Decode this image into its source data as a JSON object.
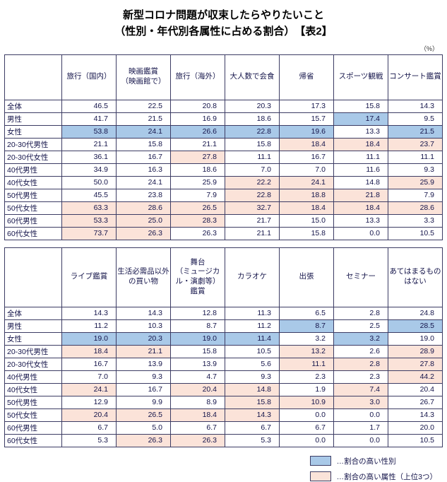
{
  "title": {
    "line1": "新型コロナ問題が収束したらやりたいこと",
    "line2": "（性別・年代別各属性に占める割合）　【表2】"
  },
  "unit_label": "（%）",
  "colors": {
    "blue": "#a9c9e8",
    "pink": "#fbe3d9"
  },
  "legend": [
    {
      "color": "blue",
      "label": "…割合の高い性別"
    },
    {
      "color": "pink",
      "label": "…割合の高い属性（上位3つ）"
    }
  ],
  "chart_data": [
    {
      "type": "table",
      "title": "新型コロナ問題が収束したらやりたいこと（表2・上段）",
      "columns": [
        "旅行（国内）",
        "映画鑑賞\n（映画館で）",
        "旅行（海外）",
        "大人数で会食",
        "帰省",
        "スポーツ観戦",
        "コンサート鑑賞"
      ],
      "rows": [
        {
          "label": "全体",
          "cells": [
            {
              "v": "46.5"
            },
            {
              "v": "22.5"
            },
            {
              "v": "20.8"
            },
            {
              "v": "20.3"
            },
            {
              "v": "17.3"
            },
            {
              "v": "15.8"
            },
            {
              "v": "14.3"
            }
          ]
        },
        {
          "label": "男性",
          "cells": [
            {
              "v": "41.7"
            },
            {
              "v": "21.5"
            },
            {
              "v": "16.9"
            },
            {
              "v": "18.6"
            },
            {
              "v": "15.7"
            },
            {
              "v": "17.4",
              "h": "blue"
            },
            {
              "v": "9.5"
            }
          ]
        },
        {
          "label": "女性",
          "cells": [
            {
              "v": "53.8",
              "h": "blue"
            },
            {
              "v": "24.1",
              "h": "blue"
            },
            {
              "v": "26.6",
              "h": "blue"
            },
            {
              "v": "22.8",
              "h": "blue"
            },
            {
              "v": "19.6",
              "h": "blue"
            },
            {
              "v": "13.3"
            },
            {
              "v": "21.5",
              "h": "blue"
            }
          ]
        },
        {
          "label": "20-30代男性",
          "cells": [
            {
              "v": "21.1"
            },
            {
              "v": "15.8"
            },
            {
              "v": "21.1"
            },
            {
              "v": "15.8"
            },
            {
              "v": "18.4",
              "h": "pink"
            },
            {
              "v": "18.4",
              "h": "pink"
            },
            {
              "v": "23.7",
              "h": "pink"
            }
          ]
        },
        {
          "label": "20-30代女性",
          "cells": [
            {
              "v": "36.1"
            },
            {
              "v": "16.7"
            },
            {
              "v": "27.8",
              "h": "pink"
            },
            {
              "v": "11.1"
            },
            {
              "v": "16.7"
            },
            {
              "v": "11.1"
            },
            {
              "v": "11.1"
            }
          ]
        },
        {
          "label": "40代男性",
          "cells": [
            {
              "v": "34.9"
            },
            {
              "v": "16.3"
            },
            {
              "v": "18.6"
            },
            {
              "v": "7.0"
            },
            {
              "v": "7.0"
            },
            {
              "v": "11.6"
            },
            {
              "v": "9.3"
            }
          ]
        },
        {
          "label": "40代女性",
          "cells": [
            {
              "v": "50.0"
            },
            {
              "v": "24.1"
            },
            {
              "v": "25.9"
            },
            {
              "v": "22.2",
              "h": "pink"
            },
            {
              "v": "24.1",
              "h": "pink"
            },
            {
              "v": "14.8"
            },
            {
              "v": "25.9",
              "h": "pink"
            }
          ]
        },
        {
          "label": "50代男性",
          "cells": [
            {
              "v": "45.5"
            },
            {
              "v": "23.8"
            },
            {
              "v": "7.9"
            },
            {
              "v": "22.8",
              "h": "pink"
            },
            {
              "v": "18.8",
              "h": "pink"
            },
            {
              "v": "21.8",
              "h": "pink"
            },
            {
              "v": "7.9"
            }
          ]
        },
        {
          "label": "50代女性",
          "cells": [
            {
              "v": "63.3",
              "h": "pink"
            },
            {
              "v": "28.6",
              "h": "pink"
            },
            {
              "v": "26.5",
              "h": "pink"
            },
            {
              "v": "32.7",
              "h": "pink"
            },
            {
              "v": "18.4",
              "h": "pink"
            },
            {
              "v": "18.4",
              "h": "pink"
            },
            {
              "v": "28.6",
              "h": "pink"
            }
          ]
        },
        {
          "label": "60代男性",
          "cells": [
            {
              "v": "53.3",
              "h": "pink"
            },
            {
              "v": "25.0",
              "h": "pink"
            },
            {
              "v": "28.3",
              "h": "pink"
            },
            {
              "v": "21.7"
            },
            {
              "v": "15.0"
            },
            {
              "v": "13.3"
            },
            {
              "v": "3.3"
            }
          ]
        },
        {
          "label": "60代女性",
          "cells": [
            {
              "v": "73.7",
              "h": "pink"
            },
            {
              "v": "26.3",
              "h": "pink"
            },
            {
              "v": "26.3"
            },
            {
              "v": "21.1"
            },
            {
              "v": "15.8"
            },
            {
              "v": "0.0"
            },
            {
              "v": "10.5"
            }
          ]
        }
      ]
    },
    {
      "type": "table",
      "title": "新型コロナ問題が収束したらやりたいこと（表2・下段）",
      "columns": [
        "ライブ鑑賞",
        "生活必需品以外\nの買い物",
        "舞台\n（ミュージカ\nル・演劇等）\n鑑賞",
        "カラオケ",
        "出張",
        "セミナー",
        "あてはまるもの\nはない"
      ],
      "rows": [
        {
          "label": "全体",
          "cells": [
            {
              "v": "14.3"
            },
            {
              "v": "14.3"
            },
            {
              "v": "12.8"
            },
            {
              "v": "11.3"
            },
            {
              "v": "6.5"
            },
            {
              "v": "2.8"
            },
            {
              "v": "24.8"
            }
          ]
        },
        {
          "label": "男性",
          "cells": [
            {
              "v": "11.2"
            },
            {
              "v": "10.3"
            },
            {
              "v": "8.7"
            },
            {
              "v": "11.2"
            },
            {
              "v": "8.7",
              "h": "blue"
            },
            {
              "v": "2.5"
            },
            {
              "v": "28.5",
              "h": "blue"
            }
          ]
        },
        {
          "label": "女性",
          "cells": [
            {
              "v": "19.0",
              "h": "blue"
            },
            {
              "v": "20.3",
              "h": "blue"
            },
            {
              "v": "19.0",
              "h": "blue"
            },
            {
              "v": "11.4",
              "h": "blue"
            },
            {
              "v": "3.2"
            },
            {
              "v": "3.2",
              "h": "blue"
            },
            {
              "v": "19.0"
            }
          ]
        },
        {
          "label": "20-30代男性",
          "cells": [
            {
              "v": "18.4",
              "h": "pink"
            },
            {
              "v": "21.1",
              "h": "pink"
            },
            {
              "v": "15.8"
            },
            {
              "v": "10.5"
            },
            {
              "v": "13.2",
              "h": "pink"
            },
            {
              "v": "2.6"
            },
            {
              "v": "28.9",
              "h": "pink"
            }
          ]
        },
        {
          "label": "20-30代女性",
          "cells": [
            {
              "v": "16.7"
            },
            {
              "v": "13.9"
            },
            {
              "v": "13.9"
            },
            {
              "v": "5.6"
            },
            {
              "v": "11.1",
              "h": "pink"
            },
            {
              "v": "2.8",
              "h": "pink"
            },
            {
              "v": "27.8",
              "h": "pink"
            }
          ]
        },
        {
          "label": "40代男性",
          "cells": [
            {
              "v": "7.0"
            },
            {
              "v": "9.3"
            },
            {
              "v": "4.7"
            },
            {
              "v": "9.3"
            },
            {
              "v": "2.3"
            },
            {
              "v": "2.3"
            },
            {
              "v": "44.2",
              "h": "pink"
            }
          ]
        },
        {
          "label": "40代女性",
          "cells": [
            {
              "v": "24.1",
              "h": "pink"
            },
            {
              "v": "16.7"
            },
            {
              "v": "20.4",
              "h": "pink"
            },
            {
              "v": "14.8",
              "h": "pink"
            },
            {
              "v": "1.9"
            },
            {
              "v": "7.4",
              "h": "pink"
            },
            {
              "v": "20.4"
            }
          ]
        },
        {
          "label": "50代男性",
          "cells": [
            {
              "v": "12.9"
            },
            {
              "v": "9.9"
            },
            {
              "v": "8.9"
            },
            {
              "v": "15.8",
              "h": "pink"
            },
            {
              "v": "10.9",
              "h": "pink"
            },
            {
              "v": "3.0",
              "h": "pink"
            },
            {
              "v": "26.7"
            }
          ]
        },
        {
          "label": "50代女性",
          "cells": [
            {
              "v": "20.4",
              "h": "pink"
            },
            {
              "v": "26.5",
              "h": "pink"
            },
            {
              "v": "18.4",
              "h": "pink"
            },
            {
              "v": "14.3",
              "h": "pink"
            },
            {
              "v": "0.0"
            },
            {
              "v": "0.0"
            },
            {
              "v": "14.3"
            }
          ]
        },
        {
          "label": "60代男性",
          "cells": [
            {
              "v": "6.7"
            },
            {
              "v": "5.0"
            },
            {
              "v": "6.7"
            },
            {
              "v": "6.7"
            },
            {
              "v": "6.7"
            },
            {
              "v": "1.7"
            },
            {
              "v": "20.0"
            }
          ]
        },
        {
          "label": "60代女性",
          "cells": [
            {
              "v": "5.3"
            },
            {
              "v": "26.3",
              "h": "pink"
            },
            {
              "v": "26.3",
              "h": "pink"
            },
            {
              "v": "5.3"
            },
            {
              "v": "0.0"
            },
            {
              "v": "0.0"
            },
            {
              "v": "10.5"
            }
          ]
        }
      ]
    }
  ]
}
